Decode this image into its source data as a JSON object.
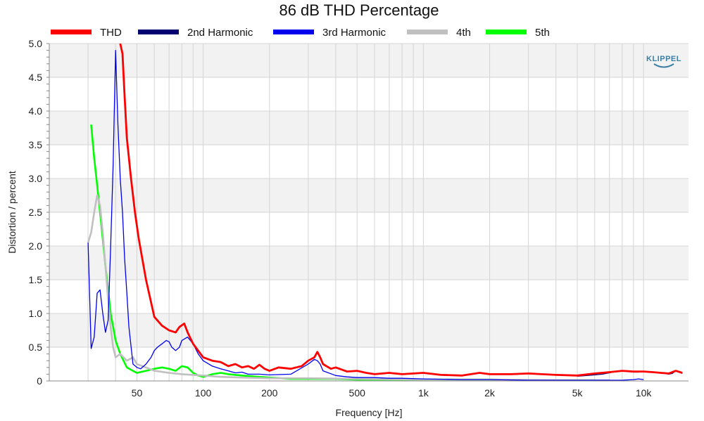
{
  "chart_data": {
    "type": "line",
    "title": "86 dB THD Percentage",
    "xlabel": "Frequency [Hz]",
    "ylabel": "Distortion / percent",
    "x_scale": "log",
    "xlim": [
      20,
      16000
    ],
    "ylim": [
      0,
      5
    ],
    "grid": true,
    "legend_position": "top",
    "x_ticks": [
      {
        "value": 50,
        "label": "50"
      },
      {
        "value": 100,
        "label": "100"
      },
      {
        "value": 200,
        "label": "200"
      },
      {
        "value": 500,
        "label": "500"
      },
      {
        "value": 1000,
        "label": "1k"
      },
      {
        "value": 2000,
        "label": "2k"
      },
      {
        "value": 5000,
        "label": "5k"
      },
      {
        "value": 10000,
        "label": "10k"
      }
    ],
    "y_ticks": [
      {
        "value": 0,
        "label": "0"
      },
      {
        "value": 0.5,
        "label": "0.5"
      },
      {
        "value": 1.0,
        "label": "1.0"
      },
      {
        "value": 1.5,
        "label": "1.5"
      },
      {
        "value": 2.0,
        "label": "2.0"
      },
      {
        "value": 2.5,
        "label": "2.5"
      },
      {
        "value": 3.0,
        "label": "3.0"
      },
      {
        "value": 3.5,
        "label": "3.5"
      },
      {
        "value": 4.0,
        "label": "4.0"
      },
      {
        "value": 4.5,
        "label": "4.5"
      },
      {
        "value": 5.0,
        "label": "5.0"
      }
    ],
    "series": [
      {
        "name": "THD",
        "color": "#ff0000",
        "x": [
          42,
          43,
          44,
          45,
          47,
          49,
          51,
          55,
          60,
          65,
          70,
          75,
          78,
          82,
          85,
          90,
          100,
          110,
          120,
          130,
          140,
          150,
          160,
          170,
          180,
          190,
          200,
          220,
          250,
          280,
          300,
          320,
          330,
          340,
          350,
          380,
          400,
          450,
          500,
          550,
          600,
          700,
          800,
          900,
          1000,
          1200,
          1500,
          1800,
          2000,
          2500,
          3000,
          4000,
          5000,
          6000,
          7000,
          8000,
          9000,
          10000,
          11000,
          12000,
          13000,
          14000,
          15000
        ],
        "y": [
          5.0,
          4.85,
          4.2,
          3.6,
          3.0,
          2.5,
          2.1,
          1.5,
          0.95,
          0.82,
          0.75,
          0.72,
          0.8,
          0.85,
          0.72,
          0.55,
          0.35,
          0.3,
          0.28,
          0.22,
          0.25,
          0.2,
          0.22,
          0.18,
          0.24,
          0.18,
          0.15,
          0.2,
          0.18,
          0.22,
          0.3,
          0.35,
          0.43,
          0.35,
          0.25,
          0.18,
          0.2,
          0.14,
          0.15,
          0.12,
          0.1,
          0.12,
          0.1,
          0.11,
          0.12,
          0.09,
          0.08,
          0.12,
          0.1,
          0.1,
          0.11,
          0.09,
          0.08,
          0.11,
          0.13,
          0.15,
          0.14,
          0.14,
          0.13,
          0.12,
          0.11,
          0.15,
          0.12
        ]
      },
      {
        "name": "2nd Harmonic",
        "color": "#00006e",
        "x": [
          5000,
          5500,
          6000,
          6500,
          7000,
          7500,
          8000,
          8500,
          9000,
          9500,
          10000,
          11000,
          12000,
          13000,
          13500,
          14000,
          15000
        ],
        "y": [
          0.07,
          0.08,
          0.09,
          0.1,
          0.12,
          0.14,
          0.15,
          0.14,
          0.13,
          0.13,
          0.14,
          0.13,
          0.12,
          0.1,
          0.11,
          0.15,
          0.11
        ]
      },
      {
        "name": "3rd Harmonic",
        "color": "#0000ee",
        "x": [
          30,
          31,
          32,
          33,
          34,
          35,
          36,
          37,
          38,
          39,
          40,
          41,
          42,
          43,
          44,
          45,
          46,
          48,
          50,
          52,
          55,
          58,
          60,
          62,
          65,
          68,
          70,
          72,
          75,
          78,
          80,
          85,
          90,
          95,
          100,
          110,
          120,
          130,
          140,
          150,
          160,
          180,
          200,
          250,
          300,
          320,
          330,
          340,
          350,
          400,
          450,
          500,
          600,
          700,
          800,
          1000,
          1500,
          2000,
          3000,
          5000,
          8000,
          9000,
          9500,
          10000
        ],
        "y": [
          2.05,
          0.48,
          0.65,
          1.3,
          1.35,
          1.0,
          0.72,
          0.9,
          2.0,
          3.2,
          4.9,
          3.8,
          3.0,
          2.5,
          1.8,
          1.3,
          0.8,
          0.25,
          0.2,
          0.18,
          0.25,
          0.35,
          0.45,
          0.5,
          0.55,
          0.6,
          0.58,
          0.5,
          0.45,
          0.5,
          0.6,
          0.65,
          0.55,
          0.4,
          0.3,
          0.22,
          0.18,
          0.15,
          0.12,
          0.13,
          0.1,
          0.1,
          0.09,
          0.1,
          0.25,
          0.32,
          0.3,
          0.25,
          0.15,
          0.08,
          0.06,
          0.05,
          0.05,
          0.04,
          0.04,
          0.03,
          0.02,
          0.02,
          0.01,
          0.01,
          0.01,
          0.02,
          0.03,
          0.02
        ]
      },
      {
        "name": "4th",
        "color": "#c0c0c0",
        "x": [
          30,
          31,
          32,
          33,
          34,
          35,
          36,
          37,
          38,
          39,
          40,
          42,
          45,
          48,
          50,
          55,
          60,
          70,
          80,
          100,
          120,
          150,
          200,
          300,
          500,
          1000,
          2000,
          5000,
          7000
        ],
        "y": [
          2.05,
          2.2,
          2.5,
          2.75,
          2.6,
          2.2,
          1.7,
          1.2,
          0.8,
          0.5,
          0.35,
          0.4,
          0.3,
          0.35,
          0.25,
          0.2,
          0.15,
          0.12,
          0.1,
          0.08,
          0.06,
          0.05,
          0.04,
          0.04,
          0.03,
          0.02,
          0.02,
          0.01,
          0.01
        ]
      },
      {
        "name": "5th",
        "color": "#00ff00",
        "x": [
          31,
          32,
          33,
          34,
          35,
          36,
          37,
          38,
          39,
          40,
          42,
          45,
          48,
          50,
          55,
          60,
          65,
          70,
          75,
          80,
          85,
          90,
          95,
          100,
          110,
          120,
          130,
          150,
          180,
          200,
          250,
          300,
          400,
          500,
          700,
          1000,
          2000,
          3000,
          5000,
          6000
        ],
        "y": [
          3.8,
          3.3,
          2.9,
          2.5,
          2.1,
          1.7,
          1.35,
          1.0,
          0.8,
          0.6,
          0.4,
          0.2,
          0.15,
          0.12,
          0.15,
          0.18,
          0.2,
          0.18,
          0.15,
          0.22,
          0.2,
          0.12,
          0.08,
          0.06,
          0.1,
          0.12,
          0.1,
          0.08,
          0.06,
          0.05,
          0.03,
          0.03,
          0.03,
          0.02,
          0.02,
          0.02,
          0.02,
          0.01,
          0.01,
          0.01
        ]
      }
    ]
  },
  "branding": {
    "logo_text": "KLIPPEL"
  },
  "colors": {
    "band": "#f2f2f2",
    "grid": "#d4d4d4",
    "axis": "#888888"
  }
}
